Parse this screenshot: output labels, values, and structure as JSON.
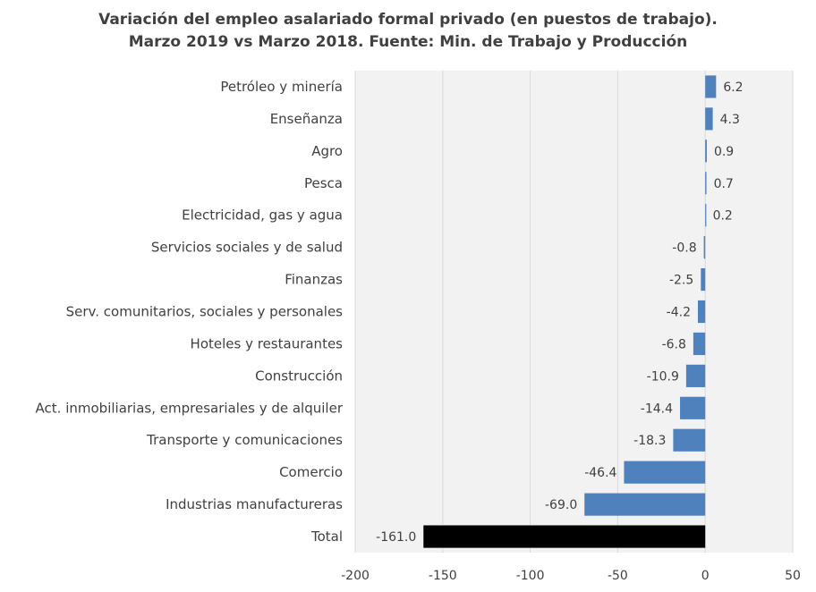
{
  "chart_data": {
    "type": "bar",
    "orientation": "horizontal",
    "title": "Variación del empleo asalariado formal privado (en puestos de trabajo).",
    "subtitle": "Marzo 2019 vs Marzo 2018. Fuente: Min. de Trabajo y Producción",
    "xlabel": "",
    "ylabel": "",
    "xlim": [
      -200,
      50
    ],
    "x_ticks": [
      -200,
      -150,
      -100,
      -50,
      0,
      50
    ],
    "x_tick_labels": [
      "-200",
      "-150",
      "-100",
      "-50",
      "0",
      "50"
    ],
    "grid": "vertical",
    "legend": "none",
    "categories": [
      "Petróleo y minería",
      "Enseñanza",
      "Agro",
      "Pesca",
      "Electricidad, gas y agua",
      "Servicios sociales y de salud",
      "Finanzas",
      "Serv. comunitarios, sociales y personales",
      "Hoteles y restaurantes",
      "Construcción",
      "Act. inmobiliarias, empresariales y de alquiler",
      "Transporte y comunicaciones",
      "Comercio",
      "Industrias manufactureras",
      "Total"
    ],
    "values": [
      6.2,
      4.3,
      0.9,
      0.7,
      0.2,
      -0.8,
      -2.5,
      -4.2,
      -6.8,
      -10.9,
      -14.4,
      -18.3,
      -46.4,
      -69.0,
      -161.0
    ],
    "value_labels": [
      "6.2",
      "4.3",
      "0.9",
      "0.7",
      "0.2",
      "-0.8",
      "-2.5",
      "-4.2",
      "-6.8",
      "-10.9",
      "-14.4",
      "-18.3",
      "-46.4",
      "-69.0",
      "-161.0"
    ],
    "colors": {
      "bar": "#4f81bd",
      "total_bar": "#000000",
      "plot_background": "#f2f2f2",
      "grid": "#d9d9d9"
    }
  }
}
